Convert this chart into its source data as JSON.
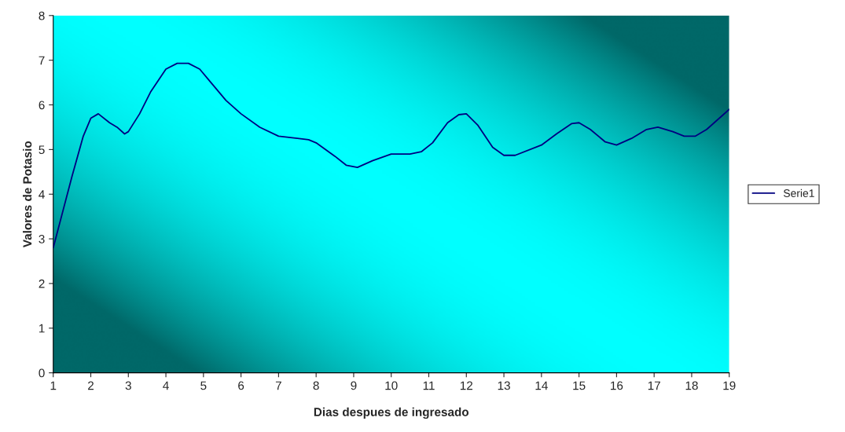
{
  "chart_data": {
    "type": "line",
    "xlabel": "Dias despues de ingresado",
    "ylabel": "Valores de Potasio",
    "x": [
      1,
      1.5,
      1.8,
      2,
      2.2,
      2.5,
      2.7,
      2.9,
      3,
      3.3,
      3.6,
      4,
      4.3,
      4.6,
      4.9,
      5.2,
      5.6,
      6,
      6.5,
      7,
      7.5,
      7.8,
      8,
      8.5,
      8.8,
      9.1,
      9.5,
      10,
      10.5,
      10.8,
      11.1,
      11.5,
      11.8,
      12,
      12.3,
      12.7,
      13,
      13.3,
      14,
      14.4,
      14.8,
      15,
      15.3,
      15.7,
      16,
      16.4,
      16.8,
      17.1,
      17.5,
      17.8,
      18.1,
      18.4,
      19
    ],
    "series": [
      {
        "name": "Serie1",
        "color": "#000080",
        "values": [
          2.8,
          4.4,
          5.3,
          5.7,
          5.8,
          5.6,
          5.5,
          5.35,
          5.4,
          5.8,
          6.3,
          6.8,
          6.93,
          6.93,
          6.8,
          6.5,
          6.1,
          5.8,
          5.5,
          5.3,
          5.25,
          5.22,
          5.15,
          4.85,
          4.65,
          4.6,
          4.75,
          4.9,
          4.9,
          4.95,
          5.15,
          5.6,
          5.78,
          5.8,
          5.55,
          5.05,
          4.87,
          4.87,
          5.1,
          5.35,
          5.58,
          5.6,
          5.45,
          5.17,
          5.1,
          5.25,
          5.45,
          5.5,
          5.4,
          5.3,
          5.3,
          5.45,
          5.9
        ]
      }
    ],
    "xlim": [
      1,
      19
    ],
    "xticks": [
      1,
      2,
      3,
      4,
      5,
      6,
      7,
      8,
      9,
      10,
      11,
      12,
      13,
      14,
      15,
      16,
      17,
      18,
      19
    ],
    "ylim": [
      0,
      8
    ],
    "yticks": [
      0,
      1,
      2,
      3,
      4,
      5,
      6,
      7,
      8
    ],
    "grid": false,
    "legend": "right",
    "marker": "none",
    "line_style": "solid"
  }
}
